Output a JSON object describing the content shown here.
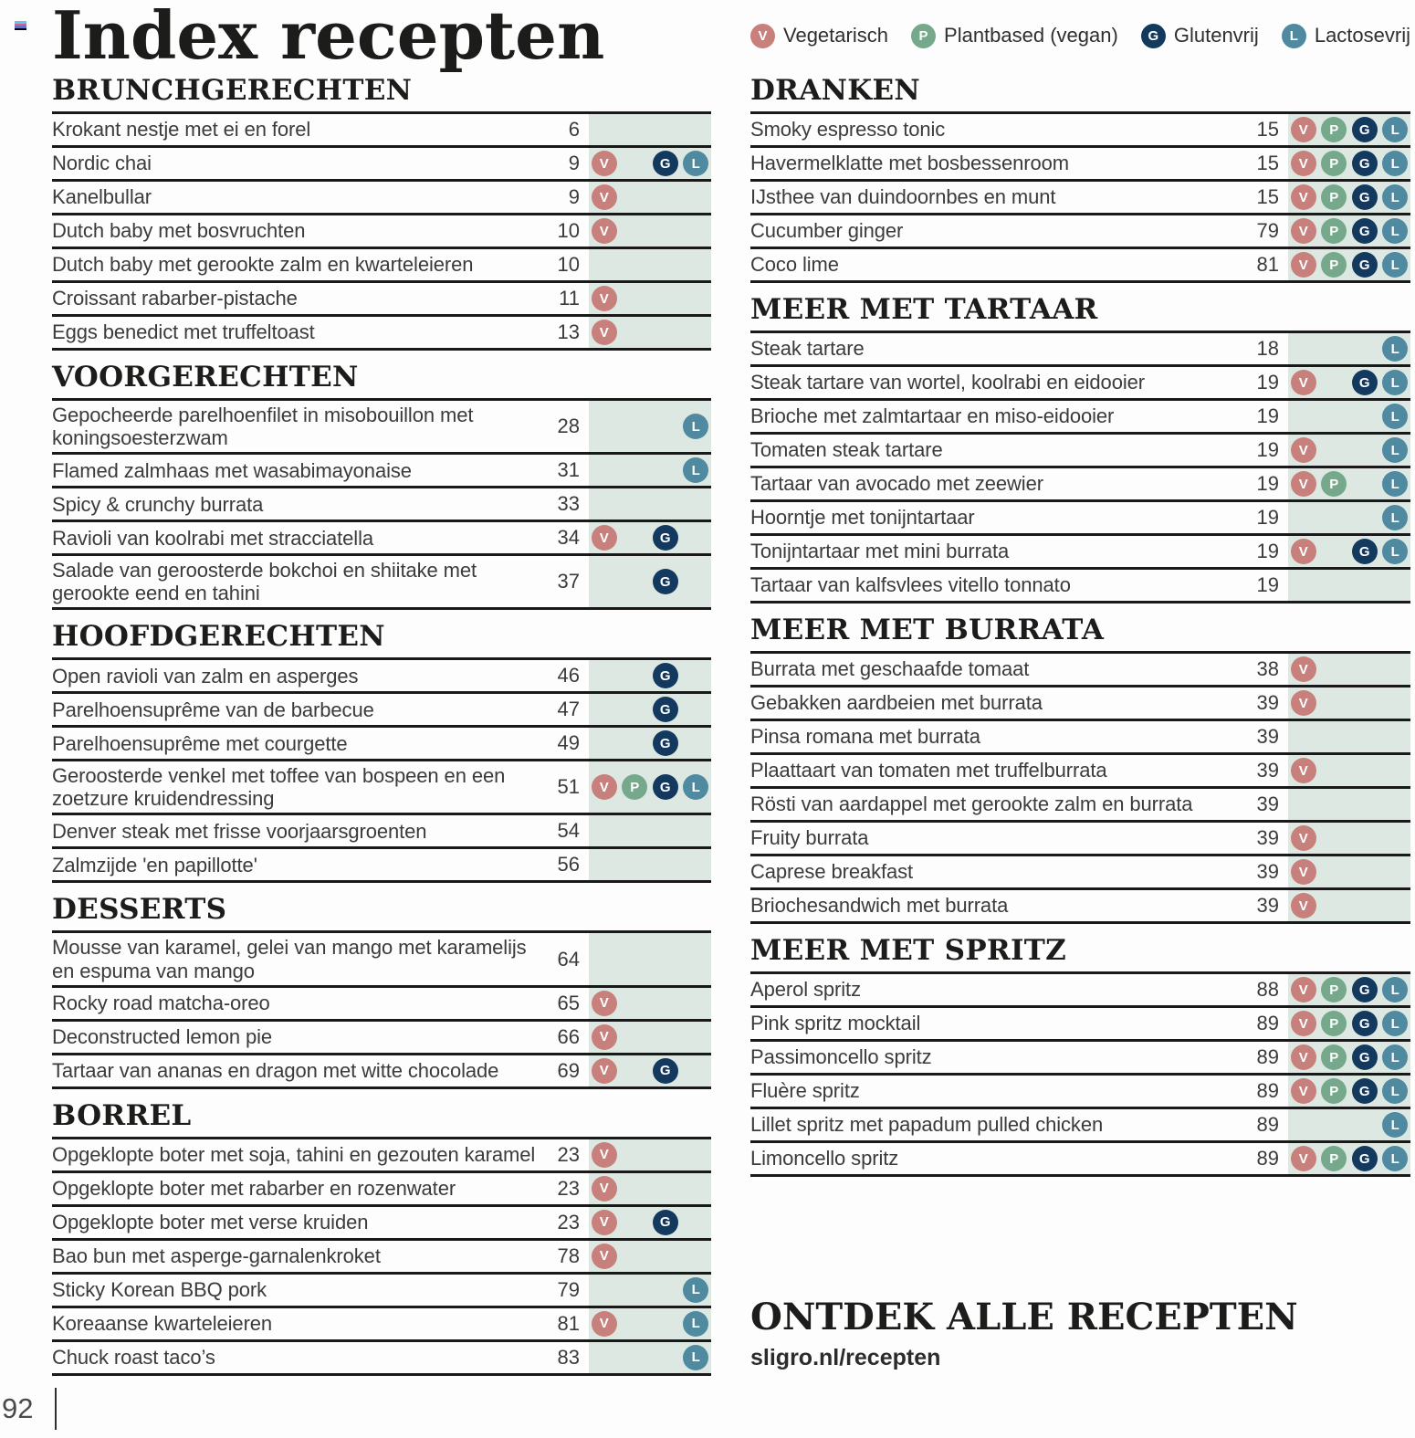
{
  "page": {
    "title": "Index recepten",
    "page_number": "92",
    "footer": {
      "title": "ONTDEK ALLE RECEPTEN",
      "url": "sligro.nl/recepten"
    }
  },
  "colors": {
    "icon_strip_bg": "#dce8e1",
    "rule": "#191919",
    "registration_mark": [
      "#5bc8ec",
      "#d95f8a",
      "#6673c5",
      "#000000"
    ]
  },
  "legend": {
    "items": [
      {
        "code": "V",
        "label": "Vegetarisch",
        "color": "#c8807d"
      },
      {
        "code": "P",
        "label": "Plantbased (vegan)",
        "color": "#76a88c"
      },
      {
        "code": "G",
        "label": "Glutenvrij",
        "color": "#14395f"
      },
      {
        "code": "L",
        "label": "Lactosevrij",
        "color": "#4f8aa0"
      }
    ]
  },
  "columns": {
    "left": [
      {
        "heading": "BRUNCHGERECHTEN",
        "rows": [
          {
            "name": "Krokant nestje met ei en forel",
            "page": "6",
            "icons": []
          },
          {
            "name": "Nordic chai",
            "page": "9",
            "icons": [
              "V",
              "G",
              "L"
            ]
          },
          {
            "name": "Kanelbullar",
            "page": "9",
            "icons": [
              "V"
            ]
          },
          {
            "name": "Dutch baby met bosvruchten",
            "page": "10",
            "icons": [
              "V"
            ]
          },
          {
            "name": "Dutch baby met gerookte zalm en kwarteleieren",
            "page": "10",
            "icons": []
          },
          {
            "name": "Croissant rabarber-pistache",
            "page": "11",
            "icons": [
              "V"
            ]
          },
          {
            "name": "Eggs benedict met truffeltoast",
            "page": "13",
            "icons": [
              "V"
            ]
          }
        ]
      },
      {
        "heading": "VOORGERECHTEN",
        "rows": [
          {
            "name": "Gepocheerde parelhoenfilet in misobouillon met koningsoesterzwam",
            "page": "28",
            "icons": [
              "L"
            ]
          },
          {
            "name": "Flamed zalmhaas met wasabimayonaise",
            "page": "31",
            "icons": [
              "L"
            ]
          },
          {
            "name": "Spicy & crunchy burrata",
            "page": "33",
            "icons": []
          },
          {
            "name": "Ravioli van koolrabi met stracciatella",
            "page": "34",
            "icons": [
              "V",
              "G"
            ]
          },
          {
            "name": "Salade van geroosterde bokchoi en shiitake met gerookte eend en tahini",
            "page": "37",
            "icons": [
              "G"
            ]
          }
        ]
      },
      {
        "heading": "HOOFDGERECHTEN",
        "rows": [
          {
            "name": "Open ravioli van zalm en asperges",
            "page": "46",
            "icons": [
              "G"
            ]
          },
          {
            "name": "Parelhoensuprême van de barbecue",
            "page": "47",
            "icons": [
              "G"
            ]
          },
          {
            "name": "Parelhoensuprême met courgette",
            "page": "49",
            "icons": [
              "G"
            ]
          },
          {
            "name": "Geroosterde venkel met toffee van bospeen en een zoetzure kruidendressing",
            "page": "51",
            "icons": [
              "V",
              "P",
              "G",
              "L"
            ]
          },
          {
            "name": "Denver steak met frisse voorjaarsgroenten",
            "page": "54",
            "icons": []
          },
          {
            "name": "Zalmzijde 'en papillotte'",
            "page": "56",
            "icons": []
          }
        ]
      },
      {
        "heading": "DESSERTS",
        "rows": [
          {
            "name": "Mousse van karamel, gelei van mango met karamelijs en espuma van mango",
            "page": "64",
            "icons": []
          },
          {
            "name": "Rocky road matcha-oreo",
            "page": "65",
            "icons": [
              "V"
            ]
          },
          {
            "name": "Deconstructed lemon pie",
            "page": "66",
            "icons": [
              "V"
            ]
          },
          {
            "name": "Tartaar van ananas en dragon met witte chocolade",
            "page": "69",
            "icons": [
              "V",
              "G"
            ]
          }
        ]
      },
      {
        "heading": "BORREL",
        "rows": [
          {
            "name": "Opgeklopte boter met soja, tahini en gezouten karamel",
            "page": "23",
            "icons": [
              "V"
            ]
          },
          {
            "name": "Opgeklopte boter met rabarber en rozenwater",
            "page": "23",
            "icons": [
              "V"
            ]
          },
          {
            "name": "Opgeklopte boter met verse kruiden",
            "page": "23",
            "icons": [
              "V",
              "G"
            ]
          },
          {
            "name": "Bao bun met asperge-garnalenkroket",
            "page": "78",
            "icons": [
              "V"
            ]
          },
          {
            "name": "Sticky Korean BBQ pork",
            "page": "79",
            "icons": [
              "L"
            ]
          },
          {
            "name": "Koreaanse kwarteleieren",
            "page": "81",
            "icons": [
              "V",
              "L"
            ]
          },
          {
            "name": "Chuck roast taco’s",
            "page": "83",
            "icons": [
              "L"
            ]
          }
        ]
      }
    ],
    "right": [
      {
        "heading": "DRANKEN",
        "rows": [
          {
            "name": "Smoky espresso tonic",
            "page": "15",
            "icons": [
              "V",
              "P",
              "G",
              "L"
            ]
          },
          {
            "name": "Havermelklatte met bosbessenroom",
            "page": "15",
            "icons": [
              "V",
              "P",
              "G",
              "L"
            ]
          },
          {
            "name": "IJsthee van duindoornbes en munt",
            "page": "15",
            "icons": [
              "V",
              "P",
              "G",
              "L"
            ]
          },
          {
            "name": "Cucumber ginger",
            "page": "79",
            "icons": [
              "V",
              "P",
              "G",
              "L"
            ]
          },
          {
            "name": "Coco lime",
            "page": "81",
            "icons": [
              "V",
              "P",
              "G",
              "L"
            ]
          }
        ]
      },
      {
        "heading": "MEER MET TARTAAR",
        "rows": [
          {
            "name": "Steak tartare",
            "page": "18",
            "icons": [
              "L"
            ]
          },
          {
            "name": "Steak tartare van wortel, koolrabi en eidooier",
            "page": "19",
            "icons": [
              "V",
              "G",
              "L"
            ]
          },
          {
            "name": "Brioche met zalmtartaar en miso-eidooier",
            "page": "19",
            "icons": [
              "L"
            ]
          },
          {
            "name": "Tomaten steak tartare",
            "page": "19",
            "icons": [
              "V",
              "L"
            ]
          },
          {
            "name": "Tartaar van avocado met zeewier",
            "page": "19",
            "icons": [
              "V",
              "P",
              "L"
            ]
          },
          {
            "name": "Hoorntje met tonijntartaar",
            "page": "19",
            "icons": [
              "L"
            ]
          },
          {
            "name": "Tonijntartaar met mini burrata",
            "page": "19",
            "icons": [
              "V",
              "G",
              "L"
            ]
          },
          {
            "name": "Tartaar van kalfsvlees vitello tonnato",
            "page": "19",
            "icons": []
          }
        ]
      },
      {
        "heading": "MEER MET BURRATA",
        "rows": [
          {
            "name": "Burrata met geschaafde tomaat",
            "page": "38",
            "icons": [
              "V"
            ]
          },
          {
            "name": "Gebakken aardbeien met burrata",
            "page": "39",
            "icons": [
              "V"
            ]
          },
          {
            "name": "Pinsa romana met burrata",
            "page": "39",
            "icons": []
          },
          {
            "name": "Plaattaart van tomaten met truffelburrata",
            "page": "39",
            "icons": [
              "V"
            ]
          },
          {
            "name": "Rösti van aardappel met gerookte zalm en burrata",
            "page": "39",
            "icons": []
          },
          {
            "name": "Fruity burrata",
            "page": "39",
            "icons": [
              "V"
            ]
          },
          {
            "name": "Caprese breakfast",
            "page": "39",
            "icons": [
              "V"
            ]
          },
          {
            "name": "Briochesandwich met burrata",
            "page": "39",
            "icons": [
              "V"
            ]
          }
        ]
      },
      {
        "heading": "MEER MET SPRITZ",
        "rows": [
          {
            "name": "Aperol spritz",
            "page": "88",
            "icons": [
              "V",
              "P",
              "G",
              "L"
            ]
          },
          {
            "name": "Pink spritz mocktail",
            "page": "89",
            "icons": [
              "V",
              "P",
              "G",
              "L"
            ]
          },
          {
            "name": "Passimoncello spritz",
            "page": "89",
            "icons": [
              "V",
              "P",
              "G",
              "L"
            ]
          },
          {
            "name": "Fluère spritz",
            "page": "89",
            "icons": [
              "V",
              "P",
              "G",
              "L"
            ]
          },
          {
            "name": "Lillet spritz met papadum pulled chicken",
            "page": "89",
            "icons": [
              "L"
            ]
          },
          {
            "name": "Limoncello spritz",
            "page": "89",
            "icons": [
              "V",
              "P",
              "G",
              "L"
            ]
          }
        ]
      }
    ]
  }
}
